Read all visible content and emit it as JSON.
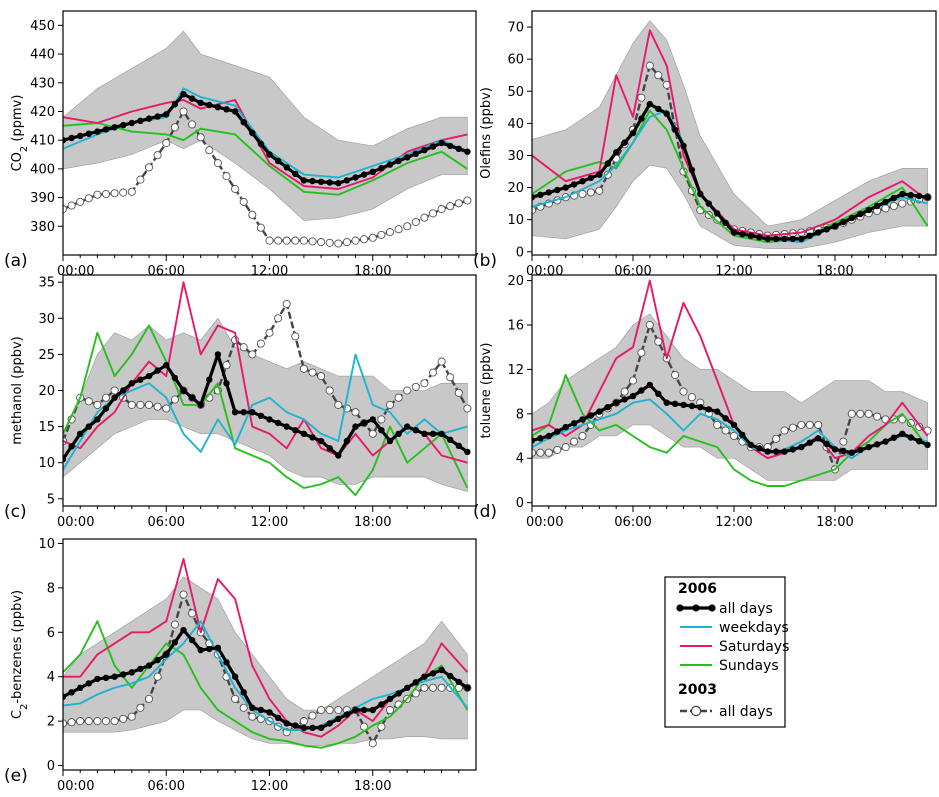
{
  "x_tick_labels": [
    "00:00",
    "06:00",
    "12:00",
    "18:00"
  ],
  "legend": {
    "group_2006": "2006",
    "group_2003": "2003",
    "items_2006": [
      {
        "label": "all days",
        "color": "#000000",
        "style": "thick-line-filled-dots"
      },
      {
        "label": "weekdays",
        "color": "#1fb3cf",
        "style": "line"
      },
      {
        "label": "Saturdays",
        "color": "#e8186a",
        "style": "line"
      },
      {
        "label": "Sundays",
        "color": "#27bf1e",
        "style": "line"
      }
    ],
    "items_2003": [
      {
        "label": "all days",
        "color": "#444444",
        "style": "dashed-open-circles"
      }
    ],
    "band_color": "#c8c8c8"
  },
  "chart_data": [
    {
      "type": "line",
      "panel": "(a)",
      "ylabel": "CO2 (ppmv)",
      "ylabel_main": "CO",
      "ylabel_sub": "2",
      "ylabel_rest": " (ppmv)",
      "xlim": [
        0,
        24
      ],
      "ylim": [
        370,
        455
      ],
      "yticks": [
        380,
        390,
        400,
        410,
        420,
        430,
        440,
        450
      ],
      "x": [
        0,
        2,
        4,
        6,
        7,
        8,
        10,
        12,
        14,
        16,
        18,
        20,
        22,
        23.5
      ],
      "band_upper": [
        418,
        428,
        435,
        442,
        448,
        440,
        436,
        432,
        418,
        410,
        408,
        414,
        418,
        418
      ],
      "band_lower": [
        400,
        402,
        405,
        410,
        407,
        410,
        402,
        393,
        382,
        383,
        386,
        393,
        398,
        398
      ],
      "series": [
        {
          "name": "all days 2006",
          "values": [
            410,
            413,
            416,
            419,
            426,
            423,
            420,
            405,
            396,
            395,
            399,
            404,
            409,
            406
          ]
        },
        {
          "name": "weekdays",
          "values": [
            407,
            412,
            416,
            418,
            428,
            425,
            422,
            406,
            398,
            397,
            401,
            405,
            410,
            406
          ]
        },
        {
          "name": "Saturdays",
          "values": [
            418,
            416,
            420,
            423,
            424,
            421,
            424,
            402,
            394,
            393,
            397,
            406,
            410,
            412
          ]
        },
        {
          "name": "Sundays",
          "values": [
            415,
            416,
            413,
            412,
            410,
            414,
            412,
            401,
            392,
            391,
            396,
            402,
            406,
            400
          ]
        },
        {
          "name": "all days 2003",
          "values": [
            386,
            391,
            392,
            409,
            420,
            411,
            393,
            375,
            375,
            374,
            376,
            380,
            386,
            389
          ]
        }
      ]
    },
    {
      "type": "line",
      "panel": "(b)",
      "ylabel": "Olefins (ppbv)",
      "xlim": [
        0,
        24
      ],
      "ylim": [
        -1,
        75
      ],
      "yticks": [
        0,
        10,
        20,
        30,
        40,
        50,
        60,
        70
      ],
      "x": [
        0,
        2,
        4,
        5,
        6,
        7,
        8,
        9,
        10,
        12,
        14,
        16,
        18,
        20,
        22,
        23.5
      ],
      "band_upper": [
        35,
        38,
        45,
        55,
        65,
        72,
        66,
        52,
        36,
        18,
        8,
        10,
        16,
        22,
        26,
        26
      ],
      "band_lower": [
        5,
        4,
        7,
        14,
        22,
        27,
        26,
        18,
        8,
        2,
        1,
        1,
        3,
        6,
        8,
        8
      ],
      "series": [
        {
          "name": "all days 2006",
          "values": [
            17,
            20,
            24,
            31,
            37,
            46,
            43,
            33,
            18,
            6,
            4,
            4,
            8,
            13,
            18,
            17
          ]
        },
        {
          "name": "weekdays",
          "values": [
            14,
            17,
            22,
            27,
            34,
            42,
            44,
            34,
            18,
            6,
            4,
            3,
            8,
            13,
            17,
            15
          ]
        },
        {
          "name": "Saturdays",
          "values": [
            30,
            22,
            25,
            55,
            42,
            69,
            58,
            30,
            18,
            7,
            5,
            6,
            10,
            17,
            22,
            16
          ]
        },
        {
          "name": "Sundays",
          "values": [
            18,
            25,
            28,
            26,
            34,
            44,
            38,
            26,
            14,
            5,
            3,
            4,
            9,
            14,
            20,
            8
          ]
        },
        {
          "name": "all days 2003",
          "values": [
            13,
            17,
            19,
            29,
            38,
            58,
            52,
            25,
            13,
            7,
            5,
            6,
            8,
            12,
            15,
            17
          ]
        }
      ]
    },
    {
      "type": "line",
      "panel": "(c)",
      "ylabel": "methanol (ppbv)",
      "xlim": [
        0,
        24
      ],
      "ylim": [
        4,
        36
      ],
      "yticks": [
        5,
        10,
        15,
        20,
        25,
        30,
        35
      ],
      "x": [
        0,
        1,
        2,
        3,
        4,
        5,
        6,
        7,
        8,
        9,
        10,
        11,
        12,
        13,
        14,
        15,
        16,
        17,
        18,
        19,
        20,
        21,
        22,
        23.5
      ],
      "band_upper": [
        14,
        19,
        25,
        28,
        27,
        29,
        27,
        28,
        27,
        30,
        26,
        25,
        24,
        23,
        24,
        23,
        22,
        22,
        22,
        20,
        20,
        20,
        21,
        21
      ],
      "band_lower": [
        8,
        10,
        12,
        14,
        15,
        16,
        16,
        15,
        14,
        14,
        13,
        12,
        11,
        9,
        8,
        8,
        7,
        7,
        8,
        8,
        8,
        8,
        7,
        6
      ],
      "series": [
        {
          "name": "all days 2006",
          "values": [
            10.5,
            14,
            16,
            19,
            21,
            22,
            23.5,
            20,
            18,
            25,
            17,
            17,
            16,
            15,
            14,
            13,
            11,
            15,
            16,
            13,
            15,
            14,
            14,
            11.5
          ]
        },
        {
          "name": "weekdays",
          "values": [
            9,
            13,
            17,
            19,
            20,
            21,
            19,
            14,
            11.5,
            16,
            12.5,
            18,
            19,
            17,
            16,
            14,
            13,
            25,
            18,
            17,
            14,
            16,
            14,
            15
          ]
        },
        {
          "name": "Saturdays",
          "values": [
            13,
            12,
            15,
            17,
            21,
            24,
            22,
            35,
            25,
            29,
            28,
            15,
            14,
            12,
            16,
            12,
            11,
            14,
            11,
            13,
            15,
            14,
            11,
            10
          ]
        },
        {
          "name": "Sundays",
          "values": [
            14,
            19,
            28,
            22,
            25,
            29,
            24,
            18,
            18,
            21,
            12,
            11,
            10,
            8,
            6.5,
            7,
            8,
            5.5,
            9,
            15,
            10,
            12,
            14,
            6.5
          ]
        },
        {
          "name": "all days 2003",
          "values": [
            13,
            19,
            18,
            20,
            18,
            18,
            17.5,
            20,
            18,
            20,
            27,
            25,
            28,
            32,
            23,
            22,
            18,
            17,
            14,
            18,
            20,
            21,
            24,
            17.5
          ]
        }
      ]
    },
    {
      "type": "line",
      "panel": "(d)",
      "ylabel": "toluene (ppbv)",
      "xlim": [
        0,
        24
      ],
      "ylim": [
        -0.3,
        20.5
      ],
      "yticks": [
        0,
        4,
        8,
        12,
        16,
        20
      ],
      "x": [
        0,
        1,
        2,
        3,
        4,
        5,
        6,
        7,
        8,
        9,
        10,
        11,
        12,
        13,
        14,
        15,
        16,
        17,
        18,
        19,
        20,
        21,
        22,
        23.5
      ],
      "band_upper": [
        8,
        9,
        11,
        12,
        13,
        14,
        16,
        17,
        15,
        13,
        12,
        12,
        11,
        10,
        10,
        10,
        9,
        10,
        11,
        11,
        11,
        10,
        10,
        9
      ],
      "band_lower": [
        4,
        4,
        5,
        5,
        6,
        6,
        7,
        7,
        6,
        5,
        5,
        4,
        4,
        3,
        2,
        2,
        2,
        2,
        2,
        3,
        3,
        3,
        3,
        3
      ],
      "series": [
        {
          "name": "all days 2006",
          "values": [
            5.6,
            6,
            6.8,
            7.5,
            8.2,
            9,
            9.6,
            10.6,
            9,
            8.8,
            8.6,
            8.2,
            7,
            5.2,
            4.6,
            4.6,
            5,
            5.8,
            4.8,
            4.5,
            5,
            5.5,
            6.2,
            5.2
          ]
        },
        {
          "name": "weekdays",
          "values": [
            5,
            5.8,
            6.5,
            7,
            7.5,
            8,
            9,
            9.3,
            8,
            6.5,
            8,
            7.5,
            6.5,
            5,
            4.5,
            4.8,
            5.5,
            6.5,
            5,
            4,
            5,
            5.5,
            6,
            5.5
          ]
        },
        {
          "name": "Saturdays",
          "values": [
            6.5,
            7,
            6,
            7,
            10,
            13,
            14,
            20,
            13,
            18,
            15,
            11,
            7,
            5,
            4,
            4.5,
            5,
            6,
            4,
            4.5,
            6,
            7,
            9,
            6
          ]
        },
        {
          "name": "Sundays",
          "values": [
            6,
            7,
            11.5,
            8,
            6.5,
            7,
            6,
            5,
            4.5,
            6,
            5.5,
            5,
            3,
            2,
            1.5,
            1.5,
            2,
            2.5,
            3,
            4.5,
            5.5,
            7,
            8,
            5
          ]
        },
        {
          "name": "all days 2003",
          "values": [
            4.5,
            4.5,
            5,
            6,
            8,
            9,
            11,
            16,
            13,
            10,
            9,
            7,
            6,
            5,
            5,
            6.5,
            7,
            7,
            3,
            8,
            8,
            7.5,
            7.5,
            6.5
          ]
        }
      ]
    },
    {
      "type": "line",
      "panel": "(e)",
      "ylabel": "C2-benzenes (ppbv)",
      "ylabel_main": "C",
      "ylabel_sub": "2",
      "ylabel_rest": "-benzenes (ppbv)",
      "xlim": [
        0,
        24
      ],
      "ylim": [
        -0.2,
        10.2
      ],
      "yticks": [
        0,
        2,
        4,
        6,
        8,
        10
      ],
      "x": [
        0,
        1,
        2,
        3,
        4,
        5,
        6,
        7,
        8,
        9,
        10,
        11,
        12,
        13,
        14,
        15,
        16,
        17,
        18,
        19,
        20,
        21,
        22,
        23.5
      ],
      "band_upper": [
        4,
        5,
        5.5,
        6,
        6.5,
        7,
        7.5,
        8.5,
        8,
        7.5,
        6,
        5,
        4,
        3,
        2.5,
        2.5,
        3,
        3.5,
        4,
        4.5,
        5,
        5.5,
        6.5,
        5
      ],
      "band_lower": [
        1.5,
        1.5,
        1.5,
        1.5,
        1.6,
        1.8,
        2,
        2.5,
        2.5,
        2,
        1.6,
        1.2,
        1,
        1,
        0.9,
        0.9,
        1,
        1,
        1.2,
        1.2,
        1.3,
        1.3,
        1.2,
        1.2
      ],
      "series": [
        {
          "name": "all days 2006",
          "values": [
            3.1,
            3.5,
            3.9,
            4,
            4.2,
            4.5,
            5,
            6.1,
            5.2,
            5.3,
            4,
            2.6,
            2.4,
            1.9,
            1.7,
            1.7,
            2.1,
            2.5,
            2.5,
            3,
            3.5,
            4,
            4.3,
            3.5
          ]
        },
        {
          "name": "weekdays",
          "values": [
            2.7,
            2.8,
            3.2,
            3.5,
            3.7,
            4,
            4.8,
            5.5,
            6.5,
            5,
            3.5,
            2.5,
            2,
            1.6,
            1.6,
            1.8,
            2.2,
            2.6,
            3,
            3.2,
            3.5,
            3.8,
            4,
            2.6
          ]
        },
        {
          "name": "Saturdays",
          "values": [
            4,
            4,
            5,
            5.5,
            6,
            6,
            6.5,
            9.3,
            6,
            8.4,
            7.5,
            4.5,
            3,
            2,
            1.5,
            1.3,
            1.8,
            2.5,
            2,
            3,
            3.5,
            4,
            5.5,
            4.2
          ]
        },
        {
          "name": "Sundays",
          "values": [
            4.2,
            5,
            6.5,
            4.5,
            3.5,
            4.5,
            5.5,
            5,
            3.5,
            2.5,
            2,
            1.5,
            1.2,
            1.1,
            0.9,
            0.8,
            1,
            1.3,
            1.8,
            2.2,
            3,
            4,
            4.5,
            2.5
          ]
        },
        {
          "name": "all days 2003",
          "values": [
            1.9,
            2,
            2,
            2,
            2.2,
            3,
            5,
            7.7,
            6,
            5,
            3,
            2.2,
            2,
            1.5,
            2,
            2.5,
            2.5,
            2.5,
            1,
            2.5,
            3,
            3.5,
            3.5,
            3.5
          ]
        }
      ]
    }
  ]
}
